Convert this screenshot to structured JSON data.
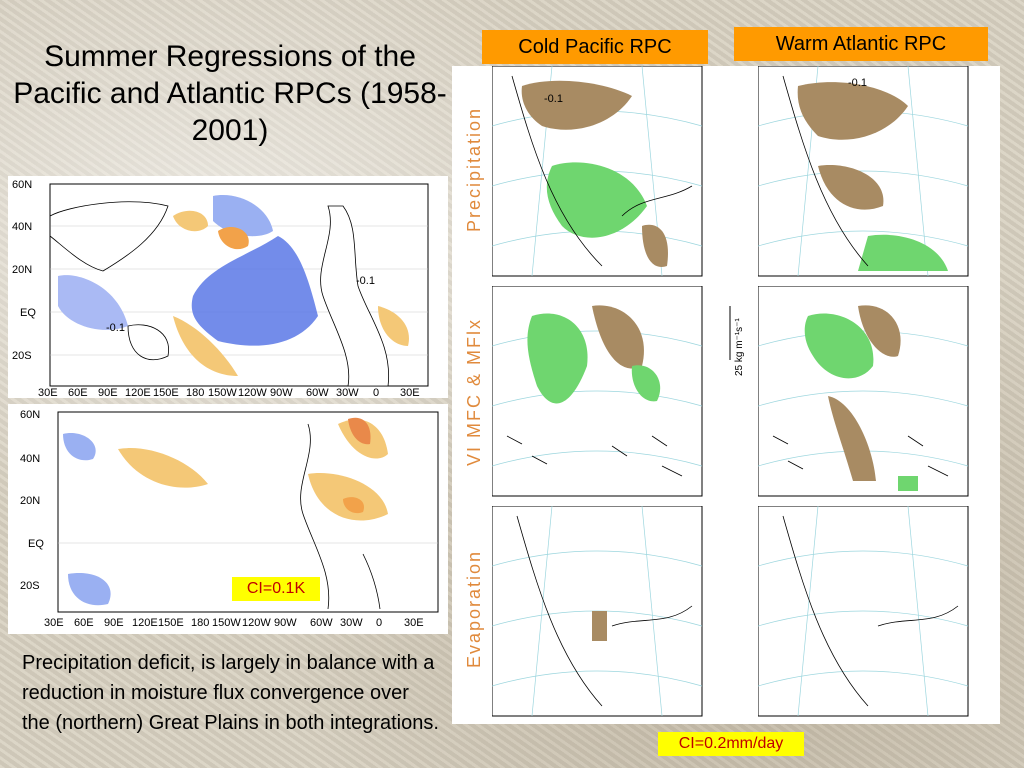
{
  "title": "Summer Regressions of the Pacific and Atlantic RPCs (1958-2001)",
  "columns": {
    "cold_pacific": "Cold Pacific  RPC",
    "warm_atlantic": "Warm Atlantic  RPC"
  },
  "row_labels": {
    "precipitation": "Precipitation",
    "moisture": "VI MFC & MFlx",
    "evaporation": "Evaporation"
  },
  "vector_scale": "25 kg m⁻¹s⁻¹",
  "ci_sst": "CI=0.1K",
  "ci_precip": "CI=0.2mm/day",
  "caption": "Precipitation deficit,  is largely in balance with a reduction in moisture flux convergence over the (northern) Great Plains in both integrations.",
  "global_map": {
    "lat_ticks": [
      "60N",
      "40N",
      "20N",
      "EQ",
      "20S"
    ],
    "lon_ticks": [
      "30E",
      "60E",
      "90E",
      "120E",
      "150E",
      "180",
      "150W",
      "120W",
      "90W",
      "60W",
      "30W",
      "0",
      "30E"
    ],
    "contour_labels": [
      "-0.1",
      "-0.1"
    ]
  },
  "na_contour_label": "-0.1",
  "colors": {
    "dry": "#a88b63",
    "wet": "#6fd66f",
    "cold": "#5a78e6",
    "warm": "#f4c877",
    "label_box": "#ff9a00",
    "ci_box": "#ffff00"
  }
}
